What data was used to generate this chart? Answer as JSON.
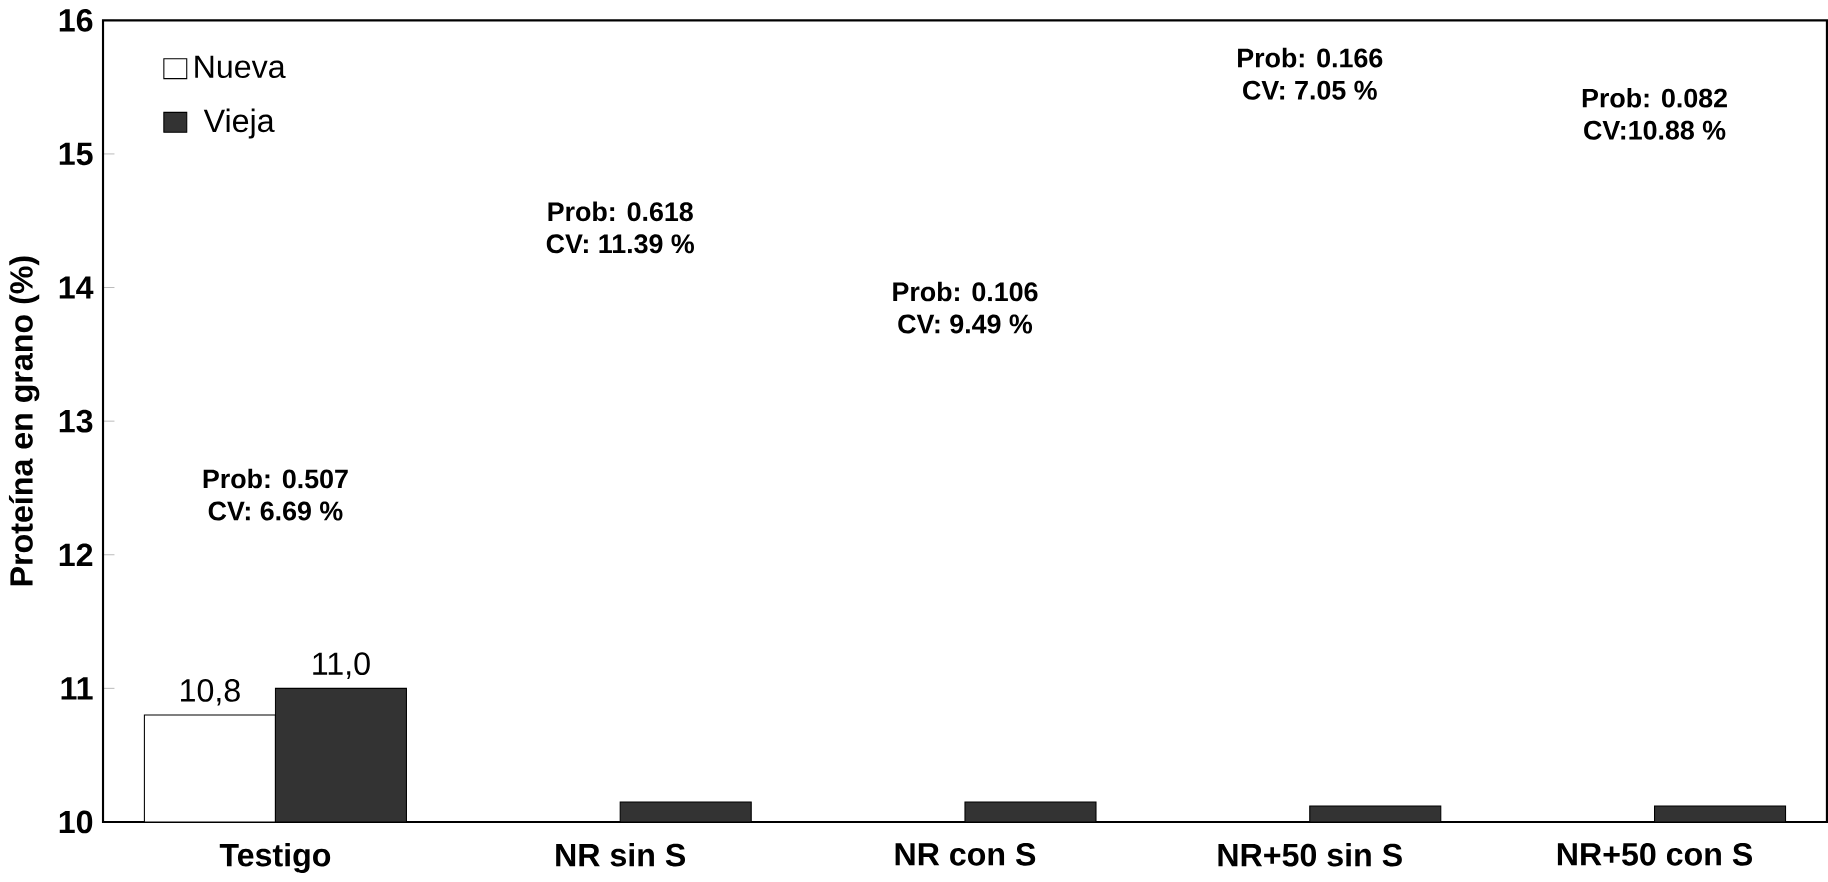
{
  "chart_data": {
    "type": "bar",
    "ylabel": "Proteína en grano (%)",
    "categories": [
      "Testigo",
      "NR sin S",
      "NR con S",
      "NR+50 sin S",
      "NR+50 con S"
    ],
    "series": [
      {
        "name": "Nueva",
        "color": "#ffffff",
        "values": [
          10.8,
          null,
          null,
          null,
          null
        ],
        "value_labels": [
          "10,8",
          null,
          null,
          null,
          null
        ]
      },
      {
        "name": "Vieja",
        "color": "#333333",
        "values": [
          11.0,
          10.15,
          10.15,
          10.12,
          10.12
        ],
        "value_labels": [
          "11,0",
          null,
          null,
          null,
          null
        ]
      }
    ],
    "ylim": [
      10,
      16
    ],
    "yticks": [
      10,
      11,
      12,
      13,
      14,
      15,
      16
    ],
    "legend": "top left",
    "grid": false,
    "annotations": [
      "Prob: 0.507",
      "CV: 6.69 %",
      "Prob: 0.618",
      "CV: 11.39 %",
      "Prob: 0.106",
      "CV: 9.49 %",
      "Prob: 0.166",
      "CV: 7.05 %",
      "Prob: 0.082",
      "CV:10.88 %"
    ]
  }
}
